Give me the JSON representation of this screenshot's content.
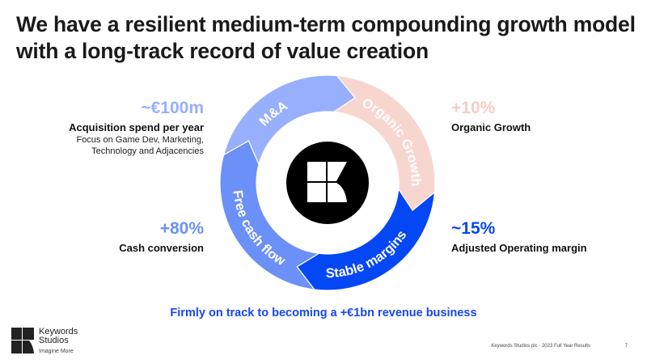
{
  "title": "We have a resilient medium-term compounding growth model with a long-track record of value creation",
  "ma": {
    "value": "~€100m",
    "label": "Acquisition spend per year",
    "detail": "Focus on Game Dev, Marketing, Technology and Adjacencies"
  },
  "organic": {
    "value": "+10%",
    "label": "Organic Growth"
  },
  "cash": {
    "value": "+80%",
    "label": "Cash conversion"
  },
  "margin": {
    "value": "~15%",
    "label": "Adjusted Operating margin"
  },
  "cycle": [
    {
      "label": "M&A",
      "color": "#97affc"
    },
    {
      "label": "Organic Growth",
      "color": "#f8d6d0"
    },
    {
      "label": "Stable margins",
      "color": "#0447f5"
    },
    {
      "label": "Free cash flow",
      "color": "#6b90f8"
    }
  ],
  "colors": {
    "ma": "#97affc",
    "organic": "#f6cdc6",
    "cash": "#6b90f8",
    "margin": "#0447f5",
    "accent": "#1747f0"
  },
  "bottom": "Firmly on track to becoming a +€1bn revenue business",
  "brand": {
    "name1": "Keywords",
    "name2": "Studios",
    "tagline": "Imagine More"
  },
  "footer": "Keywords Studios plc - 2023 Full Year Results",
  "page": "7"
}
